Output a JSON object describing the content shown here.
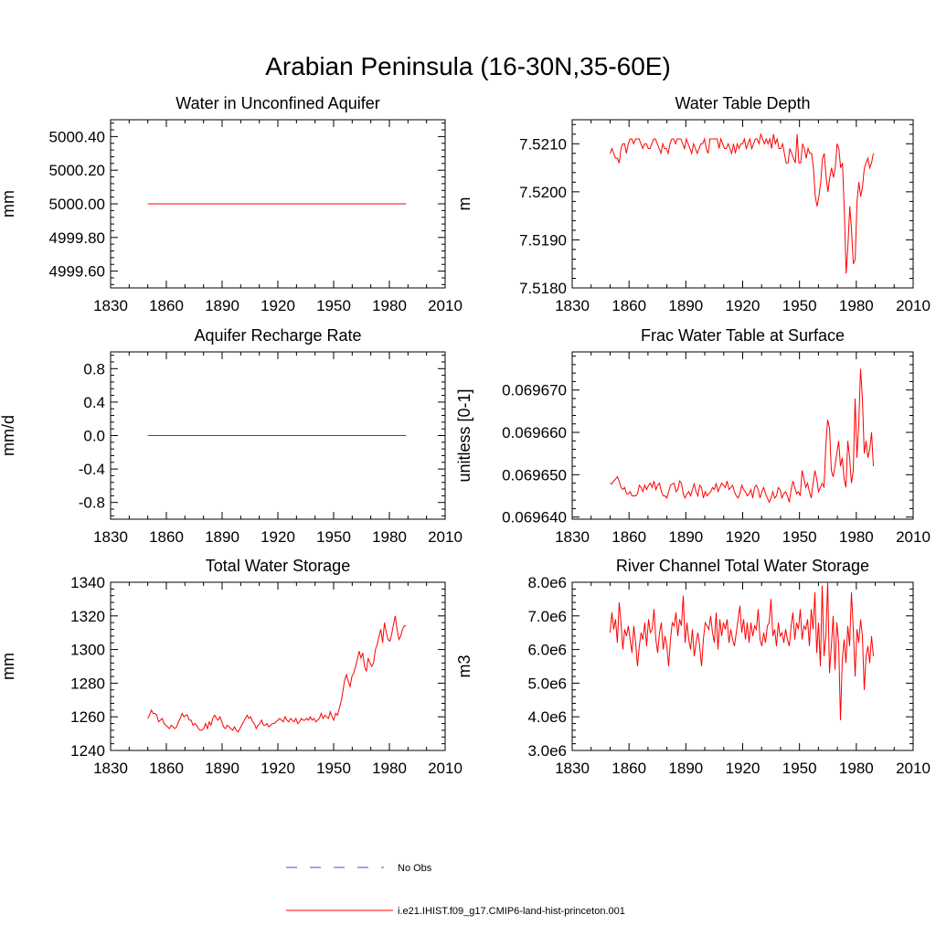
{
  "figure": {
    "title": "Arabian Peninsula (16-30N,35-60E)"
  },
  "colors": {
    "model": "#ff0000",
    "obs": "#4a4ad8",
    "axis": "#000000"
  },
  "legend": {
    "entries": [
      {
        "label": "No Obs",
        "style": "dashed",
        "color": "#4a4ad8"
      },
      {
        "label": "i.e21.IHIST.f09_g17.CMIP6-land-hist-princeton.001",
        "style": "solid",
        "color": "#ff0000"
      }
    ]
  },
  "chart_data": [
    {
      "id": "unconf",
      "type": "line",
      "title": "Water in Unconfined Aquifer",
      "xlabel": "",
      "ylabel": "mm",
      "xlim": [
        1830,
        2010
      ],
      "ylim": [
        4999.5,
        5000.5
      ],
      "xticks": [
        1830,
        1860,
        1890,
        1920,
        1950,
        1980,
        2010
      ],
      "yticks": [
        4999.6,
        4999.8,
        5000.0,
        5000.2,
        5000.4
      ],
      "ytick_labels": [
        "4999.60",
        "4999.80",
        "5000.00",
        "5000.20",
        "5000.40"
      ],
      "x_start": 1850,
      "x_end": 1989,
      "series": [
        {
          "constant": 5000.0
        }
      ]
    },
    {
      "id": "wtd",
      "type": "line",
      "title": "Water Table Depth",
      "xlabel": "",
      "ylabel": "m",
      "xlim": [
        1830,
        2010
      ],
      "ylim": [
        7.518,
        7.5215
      ],
      "xticks": [
        1830,
        1860,
        1890,
        1920,
        1950,
        1980,
        2010
      ],
      "yticks": [
        7.518,
        7.519,
        7.52,
        7.521
      ],
      "ytick_labels": [
        "7.5180",
        "7.5190",
        "7.5200",
        "7.5210"
      ],
      "x_start": 1850,
      "x_end": 1989,
      "series": [
        {
          "values": [
            7.5208,
            7.5209,
            7.5208,
            7.5207,
            7.5207,
            7.5206,
            7.5209,
            7.521,
            7.521,
            7.5208,
            7.521,
            7.5211,
            7.5211,
            7.521,
            7.5211,
            7.5211,
            7.5211,
            7.521,
            7.5209,
            7.521,
            7.521,
            7.5209,
            7.5209,
            7.521,
            7.5211,
            7.5211,
            7.521,
            7.5209,
            7.5208,
            7.521,
            7.5209,
            7.5209,
            7.5208,
            7.521,
            7.5211,
            7.5211,
            7.521,
            7.5211,
            7.5211,
            7.5211,
            7.521,
            7.5209,
            7.5211,
            7.521,
            7.5209,
            7.5208,
            7.521,
            7.5209,
            7.5208,
            7.5209,
            7.521,
            7.521,
            7.5211,
            7.5209,
            7.5208,
            7.5211,
            7.5211,
            7.5211,
            7.5211,
            7.5211,
            7.5209,
            7.5211,
            7.521,
            7.5209,
            7.5209,
            7.521,
            7.5209,
            7.5208,
            7.521,
            7.5208,
            7.521,
            7.5209,
            7.521,
            7.521,
            7.5211,
            7.5209,
            7.521,
            7.5211,
            7.5209,
            7.521,
            7.5211,
            7.5211,
            7.521,
            7.5212,
            7.5211,
            7.521,
            7.5211,
            7.521,
            7.5211,
            7.5209,
            7.5212,
            7.521,
            7.5211,
            7.5209,
            7.5209,
            7.521,
            7.5208,
            7.5206,
            7.5206,
            7.5209,
            7.5208,
            7.5207,
            7.5206,
            7.5212,
            7.5206,
            7.5206,
            7.521,
            7.5209,
            7.5207,
            7.5209,
            7.5208,
            7.5208,
            7.5205,
            7.5199,
            7.5197,
            7.5199,
            7.5202,
            7.5207,
            7.5208,
            7.5203,
            7.52,
            7.5203,
            7.5205,
            7.5203,
            7.5205,
            7.521,
            7.5209,
            7.5205,
            7.5206,
            7.5196,
            7.5183,
            7.5189,
            7.5197,
            7.5192,
            7.5185,
            7.5186,
            7.5198,
            7.5202,
            7.5199,
            7.5201,
            7.5205,
            7.5206,
            7.5207,
            7.5205,
            7.5206,
            7.5208
          ]
        }
      ]
    },
    {
      "id": "recharge",
      "type": "line",
      "title": "Aquifer Recharge Rate",
      "xlabel": "",
      "ylabel": "mm/d",
      "xlim": [
        1830,
        2010
      ],
      "ylim": [
        -1.0,
        1.0
      ],
      "xticks": [
        1830,
        1860,
        1890,
        1920,
        1950,
        1980,
        2010
      ],
      "yticks": [
        -0.8,
        -0.4,
        0.0,
        0.4,
        0.8
      ],
      "ytick_labels": [
        "-0.8",
        "-0.4",
        "0.0",
        "0.4",
        "0.8"
      ],
      "x_start": 1850,
      "x_end": 1989,
      "series": [
        {
          "constant": 0.0
        }
      ]
    },
    {
      "id": "fwts",
      "type": "line",
      "title": "Frac Water Table at Surface",
      "xlabel": "",
      "ylabel": "unitless [0-1]",
      "xlim": [
        1830,
        2010
      ],
      "ylim": [
        0.0696395,
        0.069679
      ],
      "xticks": [
        1830,
        1860,
        1890,
        1920,
        1950,
        1980,
        2010
      ],
      "yticks": [
        0.06964,
        0.06965,
        0.06966,
        0.06967
      ],
      "ytick_labels": [
        "0.069640",
        "0.069650",
        "0.069660",
        "0.069670"
      ],
      "x_start": 1850,
      "x_end": 1989,
      "series": [
        {
          "values": [
            0.069648,
            0.0696478,
            0.0696485,
            0.069649,
            0.0696495,
            0.0696485,
            0.069647,
            0.0696465,
            0.069647,
            0.0696455,
            0.0696455,
            0.069646,
            0.069645,
            0.069645,
            0.069645,
            0.0696455,
            0.0696475,
            0.069647,
            0.069646,
            0.0696475,
            0.0696465,
            0.0696475,
            0.069648,
            0.069647,
            0.0696485,
            0.0696465,
            0.0696475,
            0.069648,
            0.069646,
            0.069645,
            0.069645,
            0.0696445,
            0.069646,
            0.0696475,
            0.0696478,
            0.069648,
            0.069646,
            0.0696465,
            0.0696485,
            0.069648,
            0.0696455,
            0.0696445,
            0.0696455,
            0.069646,
            0.069645,
            0.0696465,
            0.0696478,
            0.069646,
            0.069645,
            0.0696475,
            0.069647,
            0.0696445,
            0.069646,
            0.069645,
            0.0696455,
            0.069646,
            0.069647,
            0.0696465,
            0.069648,
            0.069646,
            0.069647,
            0.069648,
            0.0696475,
            0.069647,
            0.0696485,
            0.0696465,
            0.069647,
            0.0696475,
            0.069646,
            0.069645,
            0.0696445,
            0.0696455,
            0.0696475,
            0.0696465,
            0.069646,
            0.069645,
            0.0696455,
            0.0696465,
            0.0696445,
            0.069647,
            0.0696475,
            0.0696465,
            0.0696445,
            0.069646,
            0.069647,
            0.0696455,
            0.0696445,
            0.0696435,
            0.0696445,
            0.069646,
            0.0696445,
            0.069645,
            0.069647,
            0.0696465,
            0.0696445,
            0.0696455,
            0.069646,
            0.069645,
            0.0696435,
            0.0696465,
            0.0696485,
            0.069647,
            0.0696455,
            0.069646,
            0.069645,
            0.069651,
            0.069649,
            0.069647,
            0.069648,
            0.069646,
            0.0696445,
            0.069648,
            0.069651,
            0.069649,
            0.069646,
            0.069647,
            0.069648,
            0.069647,
            0.069657,
            0.069663,
            0.069661,
            0.069651,
            0.0696495,
            0.069652,
            0.069655,
            0.069658,
            0.069652,
            0.069654,
            0.069649,
            0.069647,
            0.069658,
            0.069654,
            0.069648,
            0.069651,
            0.069668,
            0.069654,
            0.069662,
            0.069675,
            0.069668,
            0.069655,
            0.069658,
            0.069654,
            0.069656,
            0.06966,
            0.069652
          ]
        }
      ]
    },
    {
      "id": "tws",
      "type": "line",
      "title": "Total Water Storage",
      "xlabel": "",
      "ylabel": "mm",
      "xlim": [
        1830,
        2010
      ],
      "ylim": [
        1240,
        1340
      ],
      "xticks": [
        1830,
        1860,
        1890,
        1920,
        1950,
        1980,
        2010
      ],
      "yticks": [
        1240,
        1260,
        1280,
        1300,
        1320,
        1340
      ],
      "ytick_labels": [
        "1240",
        "1260",
        "1280",
        "1300",
        "1320",
        "1340"
      ],
      "x_start": 1850,
      "x_end": 1989,
      "series": [
        {
          "values": [
            1259,
            1261,
            1264,
            1262,
            1262,
            1261,
            1257,
            1258,
            1259,
            1256,
            1255,
            1254,
            1253,
            1255,
            1254,
            1253,
            1254,
            1257,
            1259,
            1262,
            1260,
            1261,
            1261,
            1258,
            1258,
            1255,
            1256,
            1255,
            1253,
            1252,
            1252,
            1253,
            1256,
            1253,
            1257,
            1255,
            1259,
            1261,
            1259,
            1258,
            1260,
            1257,
            1254,
            1253,
            1255,
            1254,
            1253,
            1252,
            1254,
            1252,
            1251,
            1253,
            1255,
            1257,
            1259,
            1261,
            1259,
            1260,
            1257,
            1256,
            1253,
            1255,
            1256,
            1258,
            1255,
            1255,
            1256,
            1254,
            1255,
            1256,
            1256,
            1257,
            1258,
            1259,
            1258,
            1257,
            1260,
            1258,
            1257,
            1259,
            1258,
            1257,
            1259,
            1256,
            1257,
            1259,
            1258,
            1258,
            1259,
            1258,
            1260,
            1258,
            1259,
            1257,
            1258,
            1259,
            1262,
            1259,
            1261,
            1260,
            1259,
            1263,
            1260,
            1258,
            1262,
            1261,
            1265,
            1269,
            1275,
            1282,
            1285,
            1281,
            1278,
            1284,
            1286,
            1290,
            1294,
            1299,
            1295,
            1298,
            1290,
            1287,
            1295,
            1292,
            1290,
            1292,
            1300,
            1303,
            1308,
            1312,
            1304,
            1316,
            1310,
            1306,
            1305,
            1309,
            1315,
            1320,
            1312,
            1306,
            1308,
            1312,
            1314,
            1314
          ]
        }
      ]
    },
    {
      "id": "river",
      "type": "line",
      "title": "River Channel Total Water Storage",
      "xlabel": "",
      "ylabel": "m3",
      "xlim": [
        1830,
        2010
      ],
      "ylim": [
        3000000,
        8000000
      ],
      "xticks": [
        1830,
        1860,
        1890,
        1920,
        1950,
        1980,
        2010
      ],
      "yticks": [
        3000000,
        4000000,
        5000000,
        6000000,
        7000000,
        8000000
      ],
      "ytick_labels": [
        "3.0e6",
        "4.0e6",
        "5.0e6",
        "6.0e6",
        "7.0e6",
        "8.0e6"
      ],
      "x_start": 1850,
      "x_end": 1989,
      "series": [
        {
          "values": [
            6500000,
            7100000,
            6600000,
            6900000,
            6200000,
            7400000,
            6800000,
            6000000,
            6600000,
            6400000,
            6700000,
            6300000,
            5900000,
            6700000,
            6200000,
            5500000,
            6100000,
            6500000,
            6300000,
            6800000,
            6100000,
            6900000,
            6500000,
            6600000,
            7200000,
            6300000,
            5900000,
            6500000,
            6800000,
            6000000,
            6400000,
            6100000,
            5500000,
            6300000,
            6800000,
            6700000,
            7100000,
            6400000,
            6900000,
            6700000,
            7600000,
            6200000,
            6800000,
            6300000,
            6000000,
            6600000,
            5800000,
            6200000,
            6500000,
            6100000,
            5500000,
            6300000,
            6800000,
            6700000,
            6600000,
            7000000,
            6500000,
            6200000,
            7100000,
            6000000,
            6900000,
            6400000,
            6800000,
            6600000,
            6900000,
            6200000,
            6600000,
            6300000,
            6100000,
            6500000,
            6900000,
            7300000,
            6500000,
            6900000,
            6300000,
            6800000,
            6200000,
            6800000,
            6400000,
            6700000,
            6600000,
            7200000,
            6300000,
            6100000,
            6500000,
            6200000,
            6700000,
            6800000,
            7500000,
            6400000,
            6600000,
            6100000,
            6800000,
            6400000,
            6500000,
            6200000,
            6600000,
            6300000,
            6100000,
            6700000,
            7100000,
            6300000,
            6800000,
            6600000,
            7200000,
            6300000,
            6700000,
            6600000,
            6900000,
            6100000,
            7200000,
            6600000,
            7700000,
            5900000,
            6800000,
            5500000,
            7900000,
            5800000,
            6400000,
            8000000,
            5300000,
            6100000,
            7000000,
            5400000,
            6800000,
            6200000,
            3900000,
            5700000,
            6300000,
            5600000,
            6700000,
            6100000,
            7700000,
            6600000,
            5200000,
            6600000,
            6200000,
            6900000,
            6400000,
            4800000,
            5800000,
            6100000,
            5600000,
            6400000,
            5800000
          ]
        }
      ]
    }
  ]
}
